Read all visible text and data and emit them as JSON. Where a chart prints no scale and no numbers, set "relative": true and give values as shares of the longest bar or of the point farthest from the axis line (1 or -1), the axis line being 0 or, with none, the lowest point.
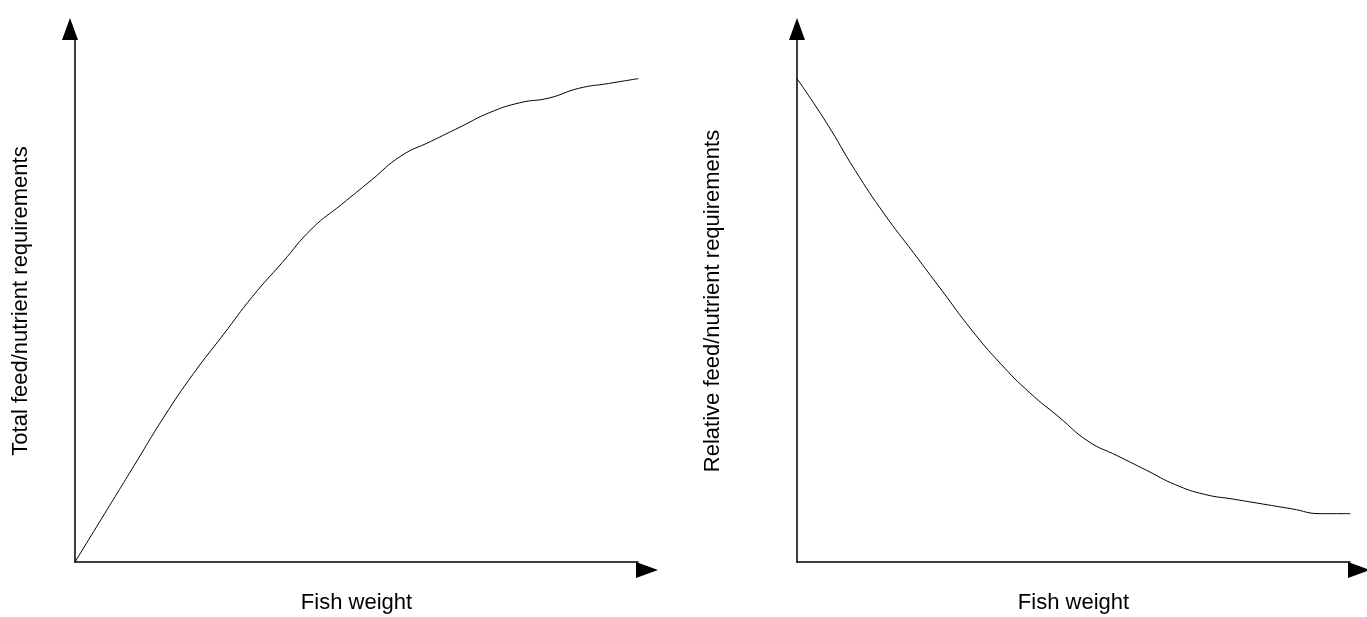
{
  "chart_data": [
    {
      "type": "line",
      "relative": true,
      "xlabel": "Fish weight",
      "ylabel": "Total feed/nutrient requirements",
      "grid": false,
      "marker": "none",
      "line_style": "solid",
      "categories": [
        null,
        null,
        null,
        null,
        null,
        null,
        null,
        null,
        null,
        null,
        null,
        null,
        null,
        null,
        null,
        null,
        null,
        null,
        null,
        null
      ],
      "series": [
        {
          "color": "#000000",
          "values": [
            0,
            0.1,
            0.2,
            0.3,
            0.39,
            0.47,
            0.55,
            0.62,
            0.69,
            0.74,
            0.79,
            0.84,
            0.87,
            0.9,
            0.93,
            0.95,
            0.96,
            0.98,
            0.99,
            1
          ]
        }
      ]
    },
    {
      "type": "line",
      "relative": true,
      "xlabel": "Fish weight",
      "ylabel": "Relative feed/nutrient requirements",
      "grid": false,
      "marker": "none",
      "line_style": "solid",
      "categories": [
        null,
        null,
        null,
        null,
        null,
        null,
        null,
        null,
        null,
        null,
        null,
        null,
        null,
        null,
        null,
        null,
        null,
        null,
        null,
        null
      ],
      "series": [
        {
          "color": "#000000",
          "values": [
            1,
            0.91,
            0.81,
            0.72,
            0.64,
            0.56,
            0.48,
            0.41,
            0.35,
            0.3,
            0.25,
            0.22,
            0.19,
            0.16,
            0.14,
            0.13,
            0.12,
            0.11,
            0.1,
            0.1
          ]
        }
      ]
    }
  ]
}
